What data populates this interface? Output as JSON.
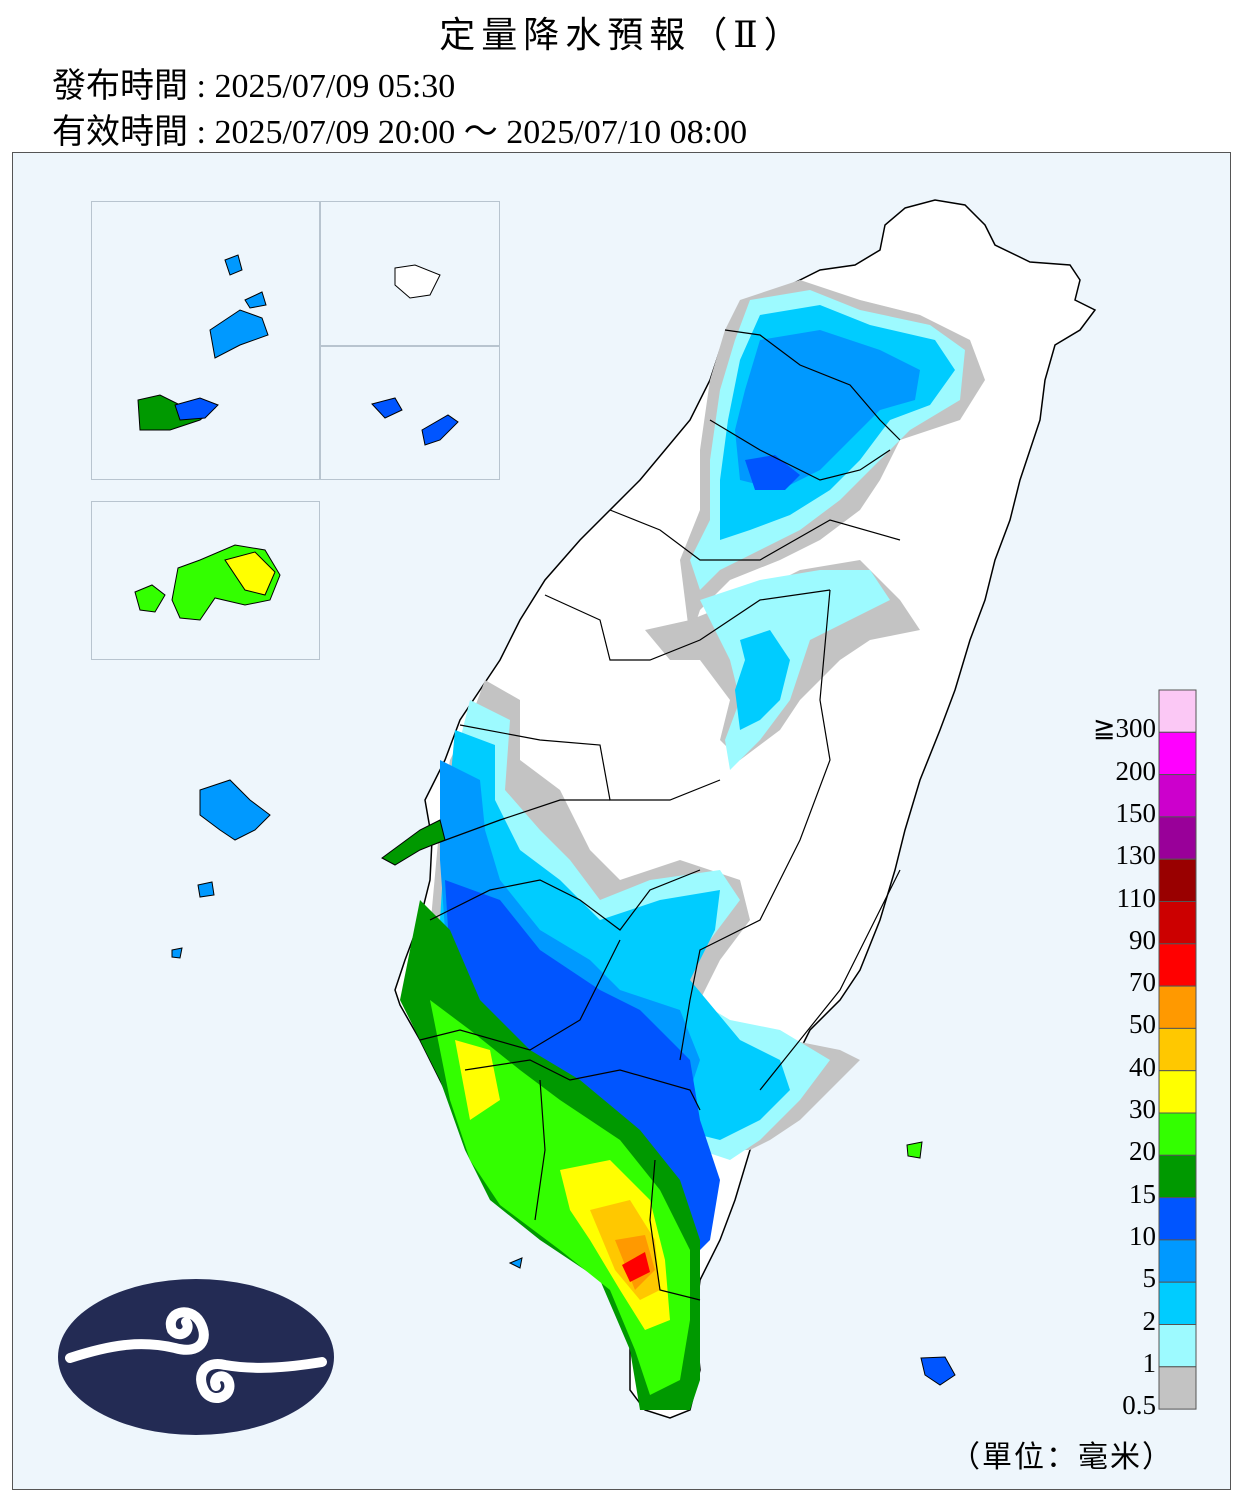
{
  "header": {
    "title": "定量降水預報（Ⅱ）",
    "issue_time": "發布時間 : 2025/07/09 05:30",
    "valid_time": "有效時間 : 2025/07/09 20:00 ～ 2025/07/10 08:00"
  },
  "legend": {
    "unit": "（單位：毫米）",
    "labels": [
      "≧300",
      "200",
      "150",
      "130",
      "110",
      "90",
      "70",
      "50",
      "40",
      "30",
      "20",
      "15",
      "10",
      "5",
      "2",
      "1",
      "0.5"
    ],
    "colors": [
      "#fbc8f5",
      "#ff00ff",
      "#cc00cc",
      "#990099",
      "#990000",
      "#cc0000",
      "#ff0000",
      "#ff9900",
      "#ffc800",
      "#ffff00",
      "#33ff00",
      "#009900",
      "#0055ff",
      "#0099ff",
      "#00ccff",
      "#9dfaff",
      "#c3c3c3"
    ]
  },
  "logo": {
    "name": "cwa-logo-icon",
    "colors": {
      "background": "#232b54",
      "swirl": "#ffffff"
    }
  },
  "colors": {
    "sea": "#eef6fc",
    "land": "#ffffff",
    "border": "#000000"
  }
}
